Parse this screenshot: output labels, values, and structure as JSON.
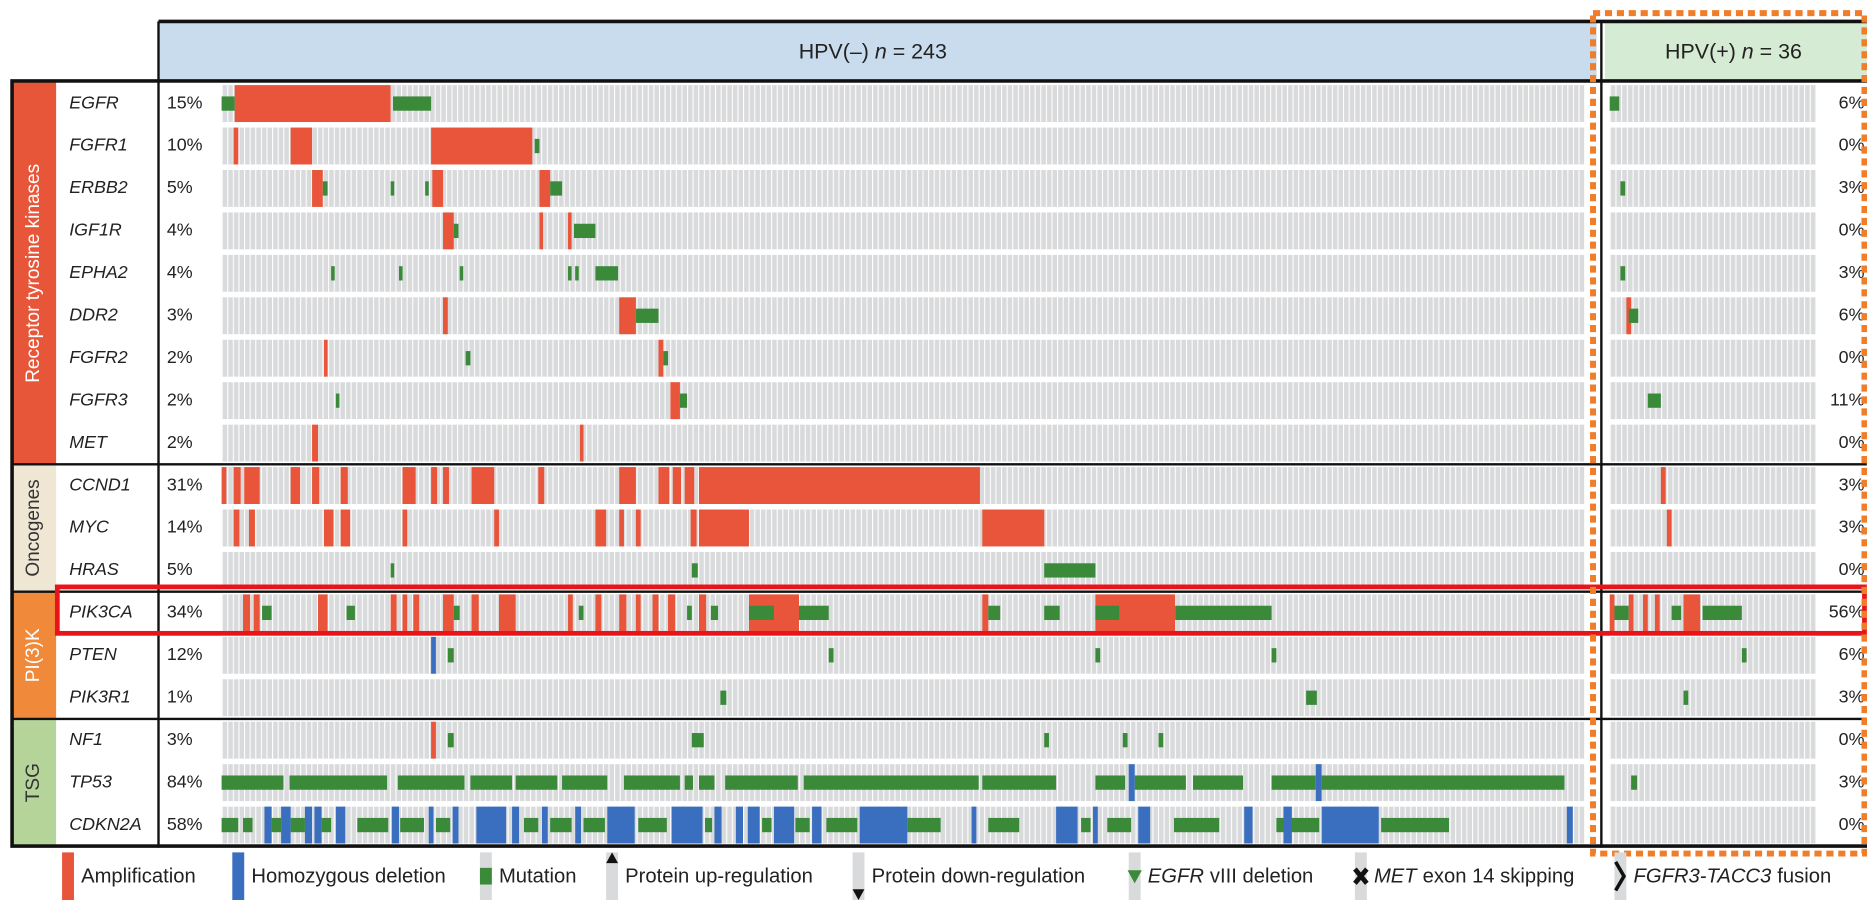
{
  "header": {
    "hpv_negative": {
      "label": "HPV(–)",
      "n": "n",
      "count": "= 243"
    },
    "hpv_positive": {
      "label": "HPV(+)",
      "n": "n",
      "count": "= 36"
    }
  },
  "groups": [
    {
      "label": "Receptor tyrosine kinases",
      "genes": [
        {
          "name": "EGFR",
          "hpv_negative": "15%",
          "hpv_positive": "6%"
        },
        {
          "name": "FGFR1",
          "hpv_negative": "10%",
          "hpv_positive": "0%"
        },
        {
          "name": "ERBB2",
          "hpv_negative": "5%",
          "hpv_positive": "3%"
        },
        {
          "name": "IGF1R",
          "hpv_negative": "4%",
          "hpv_positive": "0%"
        },
        {
          "name": "EPHA2",
          "hpv_negative": "4%",
          "hpv_positive": "3%"
        },
        {
          "name": "DDR2",
          "hpv_negative": "3%",
          "hpv_positive": "6%"
        },
        {
          "name": "FGFR2",
          "hpv_negative": "2%",
          "hpv_positive": "0%"
        },
        {
          "name": "FGFR3",
          "hpv_negative": "2%",
          "hpv_positive": "11%"
        },
        {
          "name": "MET",
          "hpv_negative": "2%",
          "hpv_positive": "0%"
        }
      ]
    },
    {
      "label": "Oncogenes",
      "genes": [
        {
          "name": "CCND1",
          "hpv_negative": "31%",
          "hpv_positive": "3%"
        },
        {
          "name": "MYC",
          "hpv_negative": "14%",
          "hpv_positive": "3%"
        },
        {
          "name": "HRAS",
          "hpv_negative": "5%",
          "hpv_positive": "0%"
        }
      ]
    },
    {
      "label": "PI(3)K",
      "genes": [
        {
          "name": "PIK3CA",
          "hpv_negative": "34%",
          "hpv_positive": "56%"
        },
        {
          "name": "PTEN",
          "hpv_negative": "12%",
          "hpv_positive": "6%"
        },
        {
          "name": "PIK3R1",
          "hpv_negative": "1%",
          "hpv_positive": "3%"
        }
      ]
    },
    {
      "label": "TSG",
      "genes": [
        {
          "name": "NF1",
          "hpv_negative": "3%",
          "hpv_positive": "0%"
        },
        {
          "name": "TP53",
          "hpv_negative": "84%",
          "hpv_positive": "3%"
        },
        {
          "name": "CDKN2A",
          "hpv_negative": "58%",
          "hpv_positive": "0%"
        }
      ]
    }
  ],
  "legend": [
    {
      "label": "Amplification"
    },
    {
      "label": "Homozygous deletion"
    },
    {
      "label": "Mutation"
    },
    {
      "label": "Protein up-regulation"
    },
    {
      "label": "Protein down-regulation"
    },
    {
      "italic": "EGFR",
      "label": "vIII deletion"
    },
    {
      "italic": "MET",
      "label": "exon 14 skipping"
    },
    {
      "italic": "FGFR3-TACC3",
      "label": "fusion"
    }
  ]
}
